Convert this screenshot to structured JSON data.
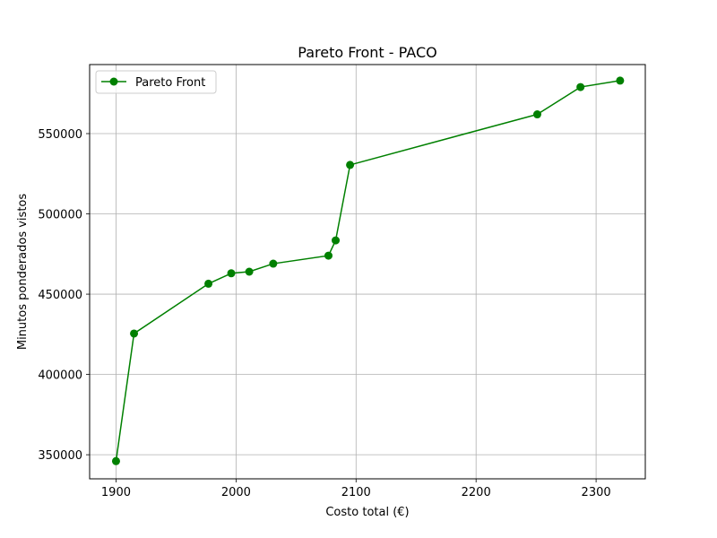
{
  "chart_data": {
    "type": "line",
    "title": "Pareto Front - PACO",
    "xlabel": "Costo total (€)",
    "ylabel": "Minutos ponderados vistos",
    "xlim": [
      1878,
      2341
    ],
    "ylim": [
      335000,
      593000
    ],
    "xticks": [
      1900,
      2000,
      2100,
      2200,
      2300
    ],
    "yticks": [
      350000,
      400000,
      450000,
      500000,
      550000
    ],
    "grid": true,
    "legend": "top-left",
    "series": [
      {
        "name": "Pareto Front",
        "color": "#008000",
        "marker": "circle",
        "points": [
          {
            "x": 1900,
            "y": 346000
          },
          {
            "x": 1915,
            "y": 425500
          },
          {
            "x": 1977,
            "y": 456500
          },
          {
            "x": 1996,
            "y": 463000
          },
          {
            "x": 2011,
            "y": 464000
          },
          {
            "x": 2031,
            "y": 469000
          },
          {
            "x": 2077,
            "y": 474000
          },
          {
            "x": 2083,
            "y": 483500
          },
          {
            "x": 2095,
            "y": 530500
          },
          {
            "x": 2251,
            "y": 562000
          },
          {
            "x": 2287,
            "y": 579000
          },
          {
            "x": 2320,
            "y": 583000
          }
        ]
      }
    ]
  }
}
